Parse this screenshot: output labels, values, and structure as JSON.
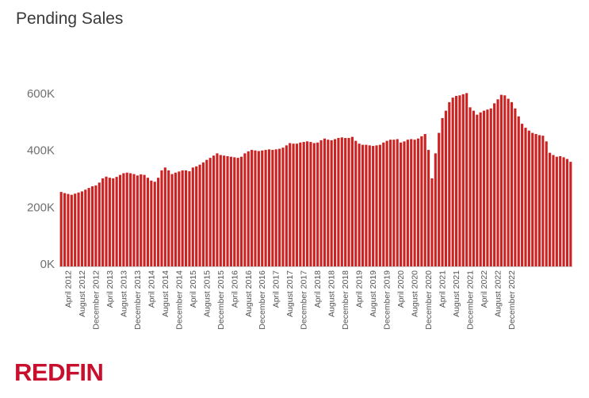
{
  "title": "Pending Sales",
  "brand": "REDFIN",
  "colors": {
    "bar": "#cc2222",
    "axis": "#cccccc",
    "brand": "#c8102e"
  },
  "chart_data": {
    "type": "bar",
    "title": "Pending Sales",
    "xlabel": "",
    "ylabel": "",
    "ylim": [
      0,
      600000
    ],
    "y_ticks": [
      {
        "v": 0,
        "label": "0K"
      },
      {
        "v": 200000,
        "label": "200K"
      },
      {
        "v": 400000,
        "label": "400K"
      },
      {
        "v": 600000,
        "label": "600K"
      }
    ],
    "grid": false,
    "start_month": "2012-02",
    "x_ticks": [
      "April 2012",
      "August 2012",
      "December 2012",
      "April 2013",
      "August 2013",
      "December 2013",
      "April 2014",
      "August 2014",
      "December 2014",
      "April 2015",
      "August 2015",
      "December 2015",
      "April 2016",
      "August 2016",
      "December 2016",
      "April 2017",
      "August 2017",
      "December 2017",
      "April 2018",
      "August 2018",
      "December 2018",
      "April 2019",
      "August 2019",
      "December 2019",
      "April 2020",
      "August 2020",
      "December 2020",
      "April 2021",
      "August 2021",
      "December 2021",
      "April 2022",
      "August 2022",
      "December 2022"
    ],
    "values": [
      262000,
      258000,
      255000,
      252000,
      256000,
      260000,
      264000,
      270000,
      276000,
      282000,
      285000,
      295000,
      310000,
      316000,
      312000,
      310000,
      315000,
      322000,
      328000,
      330000,
      328000,
      325000,
      320000,
      324000,
      322000,
      312000,
      302000,
      298000,
      312000,
      338000,
      348000,
      338000,
      325000,
      330000,
      334000,
      338000,
      338000,
      335000,
      348000,
      352000,
      358000,
      366000,
      375000,
      382000,
      390000,
      398000,
      392000,
      390000,
      388000,
      386000,
      384000,
      382000,
      386000,
      398000,
      405000,
      410000,
      408000,
      406000,
      408000,
      410000,
      412000,
      410000,
      412000,
      414000,
      418000,
      426000,
      434000,
      432000,
      432000,
      436000,
      438000,
      440000,
      438000,
      434000,
      436000,
      444000,
      450000,
      446000,
      444000,
      448000,
      452000,
      454000,
      452000,
      452000,
      456000,
      442000,
      432000,
      428000,
      428000,
      426000,
      424000,
      426000,
      428000,
      436000,
      442000,
      446000,
      446000,
      448000,
      436000,
      440000,
      446000,
      448000,
      446000,
      450000,
      458000,
      466000,
      410000,
      310000,
      398000,
      470000,
      522000,
      548000,
      578000,
      594000,
      600000,
      602000,
      606000,
      610000,
      560000,
      548000,
      534000,
      542000,
      548000,
      552000,
      556000,
      574000,
      588000,
      604000,
      602000,
      590000,
      578000,
      556000,
      528000,
      502000,
      488000,
      478000,
      470000,
      466000,
      462000,
      460000,
      440000,
      400000,
      392000,
      386000,
      388000,
      384000,
      378000,
      368000
    ]
  }
}
